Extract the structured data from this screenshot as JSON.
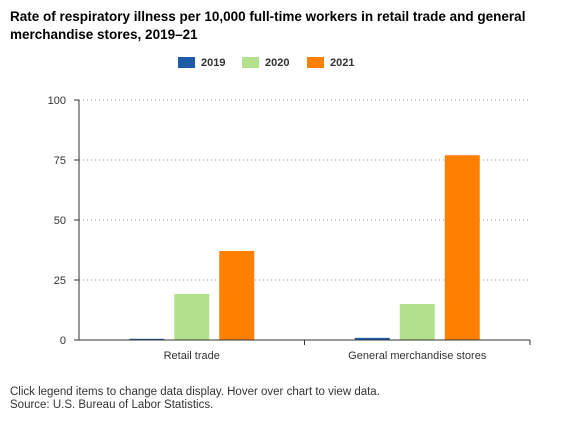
{
  "title": "Rate of respiratory illness per 10,000 full-time workers in retail trade and general merchandise stores, 2019–21",
  "footer": {
    "note": "Click legend items to change data display. Hover over chart to view data.",
    "source": "Source: U.S. Bureau of Labor Statistics."
  },
  "chart_data": {
    "type": "bar",
    "title": "Rate of respiratory illness per 10,000 full-time workers in retail trade and general merchandise stores, 2019–21",
    "xlabel": "",
    "ylabel": "",
    "categories": [
      "Retail trade",
      "General merchandise stores"
    ],
    "series": [
      {
        "name": "2019",
        "color": "#1f5aa6",
        "values": [
          0.5,
          0.9
        ]
      },
      {
        "name": "2020",
        "color": "#b3e08a",
        "values": [
          19.2,
          15.0
        ]
      },
      {
        "name": "2021",
        "color": "#ff8000",
        "values": [
          37.1,
          77.0
        ]
      }
    ],
    "ylim": [
      0,
      100
    ],
    "yticks": [
      0,
      25,
      50,
      75,
      100
    ],
    "grid": true,
    "legend_position": "top-center"
  }
}
